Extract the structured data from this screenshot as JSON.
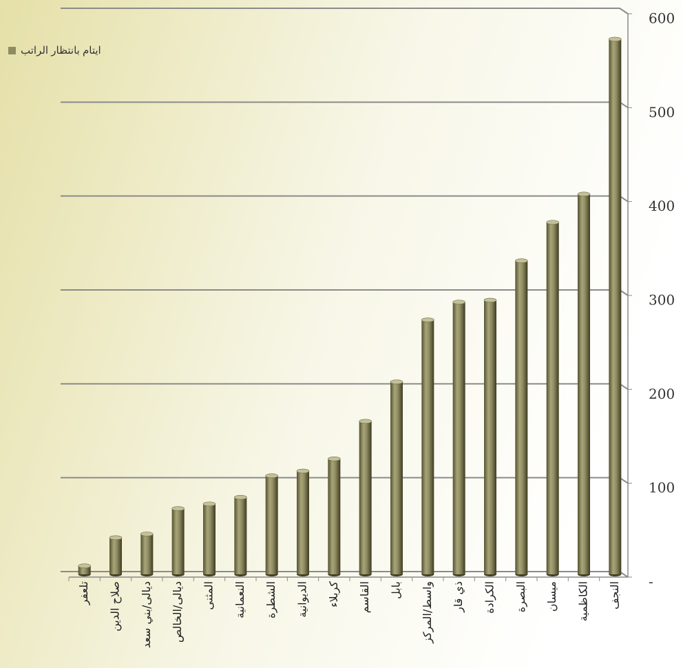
{
  "chart_data": {
    "type": "bar",
    "categories": [
      "تلعفر",
      "صلاح الدين",
      "ديالى/بني سعد",
      "ديالى/الخالص",
      "المثنى",
      "النعمانية",
      "الشطرة",
      "الديوانية",
      "كربلاء",
      "القاسم",
      "بابل",
      "واسط/المركز",
      "ذي قار",
      "الكرادة",
      "البصرة",
      "ميسان",
      "الكاظمية",
      "النجف"
    ],
    "series": [
      {
        "name": "ايتام بانتظار الراتب",
        "color": "#8f8c62",
        "values": [
          9,
          39,
          43,
          70,
          75,
          82,
          105,
          110,
          123,
          163,
          205,
          271,
          290,
          292,
          334,
          375,
          405,
          570
        ]
      }
    ],
    "ylim": [
      0,
      600
    ],
    "yticks": [
      {
        "value": 0,
        "label": "-"
      },
      100,
      200,
      300,
      400,
      500,
      600
    ],
    "grid": true,
    "legend": "top-left"
  }
}
